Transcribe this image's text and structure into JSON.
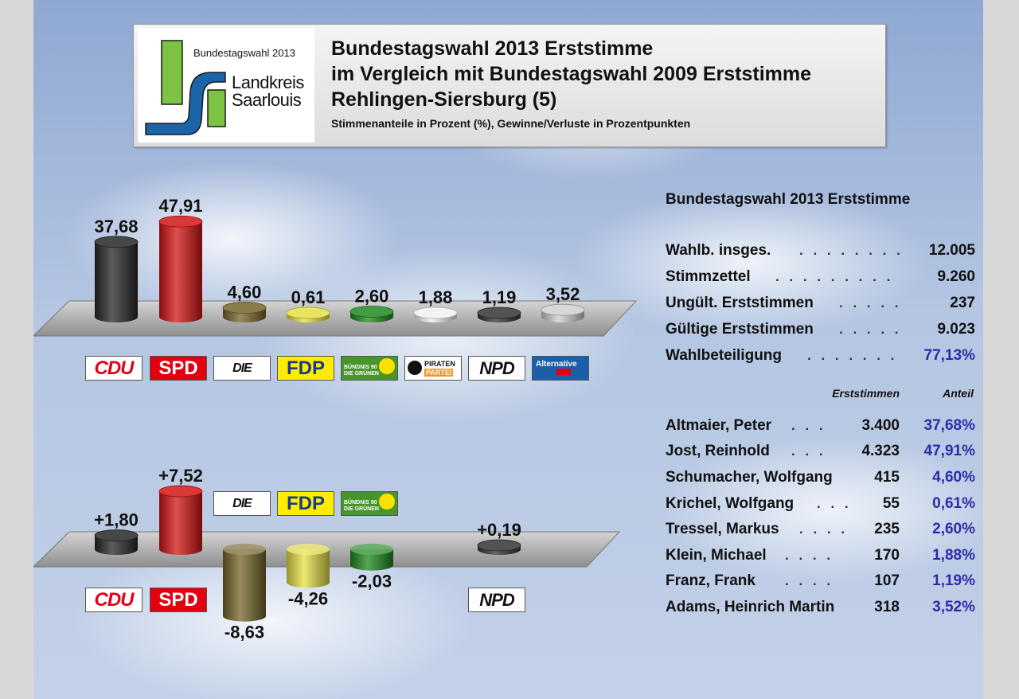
{
  "header": {
    "title_line1": "Bundestagswahl 2013 Erststimme",
    "title_line2": "im Vergleich mit Bundestagswahl 2009 Erststimme",
    "title_line3": "Rehlingen-Siersburg (5)",
    "subtitle": "Stimmenanteile in Prozent (%), Gewinne/Verluste in Prozentpunkten",
    "logo_year": "Bundestagswahl 2013",
    "logo_line1": "Landkreis",
    "logo_line2": "Saarlouis"
  },
  "colors": {
    "CDU": "#262626",
    "SPD": "#d41414",
    "DIE LINKE.": "#76662a",
    "FDP": "#e6e045",
    "GRÜNE": "#1e8a1e",
    "PIRATEN": "#f2f2f2",
    "NPD": "#333333",
    "AfD": "#d0d0d0"
  },
  "chart_data": [
    {
      "type": "bar",
      "title": "",
      "categories": [
        "CDU",
        "SPD",
        "DIE LINKE.",
        "FDP",
        "GRÜNE",
        "PIRATEN",
        "NPD",
        "AfD"
      ],
      "values": [
        37.68,
        47.91,
        4.6,
        0.61,
        2.6,
        1.88,
        1.19,
        3.52
      ],
      "labels": [
        "37,68",
        "47,91",
        "4,60",
        "0,61",
        "2,60",
        "1,88",
        "1,19",
        "3,52"
      ]
    },
    {
      "type": "bar",
      "title": "",
      "categories": [
        "CDU",
        "SPD",
        "DIE LINKE.",
        "FDP",
        "GRÜNE",
        "NPD"
      ],
      "values": [
        1.8,
        7.52,
        -8.63,
        -4.26,
        -2.03,
        0.19
      ],
      "labels": [
        "+1,80",
        "+7,52",
        "-8,63",
        "-4,26",
        "-2,03",
        "+0,19"
      ]
    }
  ],
  "party_logos": {
    "cdu": "CDU",
    "spd": "SPD",
    "linke": "DIE LINKE",
    "linke_dot": ".",
    "fdp": "FDP",
    "gruene_1": "BÜNDNIS 90",
    "gruene_2": "DIE GRÜNEN",
    "piraten_1": "PIRATEN",
    "piraten_2": "PARTEI",
    "npd": "NPD",
    "afd_1": "Alternative",
    "afd_2": "für Deutschland"
  },
  "stats": {
    "title": "Bundestagswahl 2013 Erststimme",
    "rows": [
      {
        "label": "Wahlb. insges.",
        "dots": ". . . . . . . .",
        "value": "12.005"
      },
      {
        "label": "Stimmzettel",
        "dots": ". . . . . . . . .",
        "value": "9.260"
      },
      {
        "label": "Ungült. Erststimmen",
        "dots": ". . . . .",
        "value": "237"
      },
      {
        "label": "Gültige Erststimmen",
        "dots": ". . . . .",
        "value": "9.023"
      },
      {
        "label": "Wahlbeteiligung",
        "dots": ". . . . . . .",
        "value": "77,13%"
      }
    ],
    "col_votes": "Erststimmen",
    "col_share": "Anteil",
    "candidates": [
      {
        "name": "Altmaier, Peter",
        "dots": ". . .",
        "votes": "3.400",
        "share": "37,68%"
      },
      {
        "name": "Jost, Reinhold",
        "dots": ". . .",
        "votes": "4.323",
        "share": "47,91%"
      },
      {
        "name": "Schumacher, Wolfgang",
        "dots": "",
        "votes": "415",
        "share": "4,60%"
      },
      {
        "name": "Krichel, Wolfgang",
        "dots": ". . .",
        "votes": "55",
        "share": "0,61%"
      },
      {
        "name": "Tressel, Markus",
        "dots": ". . . .",
        "votes": "235",
        "share": "2,60%"
      },
      {
        "name": "Klein, Michael",
        "dots": ". . . .",
        "votes": "170",
        "share": "1,88%"
      },
      {
        "name": "Franz, Frank",
        "dots": ". . . .",
        "votes": "107",
        "share": "1,19%"
      },
      {
        "name": "Adams, Heinrich Martin",
        "dots": "",
        "votes": "318",
        "share": "3,52%"
      }
    ]
  }
}
